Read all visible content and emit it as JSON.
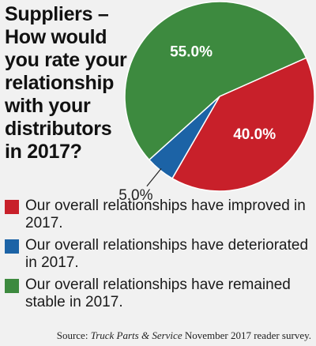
{
  "chart_data": {
    "type": "pie",
    "title": "Suppliers –\nHow would\nyou rate your\nrelationship\nwith your\ndistributors\nin 2017?",
    "slices": [
      {
        "label": "Our overall relationships have improved in 2017.",
        "value": 40.0,
        "display": "40.0%",
        "color": "#c8202a"
      },
      {
        "label": "Our overall relationships have deteriorated in 2017.",
        "value": 5.0,
        "display": "5.0%",
        "color": "#1c63a6"
      },
      {
        "label": "Our overall relationships have remained stable in 2017.",
        "value": 55.0,
        "display": "55.0%",
        "color": "#3d8a3f"
      }
    ]
  },
  "source": {
    "prefix": "Source: ",
    "publication": "Truck Parts & Service",
    "suffix": " November 2017 reader survey."
  }
}
